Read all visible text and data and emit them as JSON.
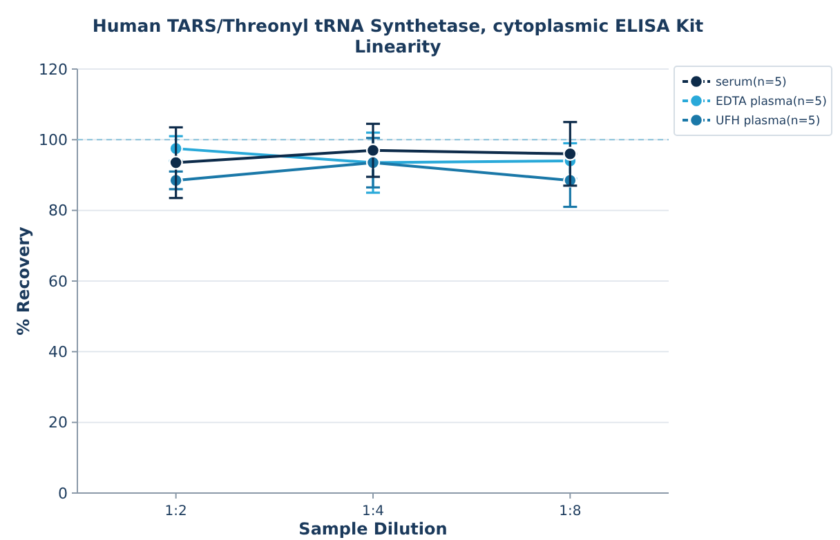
{
  "chart_data": {
    "type": "line",
    "title": "Human TARS/Threonyl tRNA Synthetase, cytoplasmic ELISA Kit",
    "subtitle": "Linearity",
    "xlabel": "Sample Dilution",
    "ylabel": "% Recovery",
    "categories": [
      "1:2",
      "1:4",
      "1:8"
    ],
    "series": [
      {
        "name": "serum(n=5)",
        "color": "#0d2b4a",
        "values": [
          93.5,
          97,
          96
        ],
        "errors": [
          10,
          7.5,
          9
        ]
      },
      {
        "name": "EDTA plasma(n=5)",
        "color": "#29a9d9",
        "values": [
          97.5,
          93.5,
          94
        ],
        "errors": [
          3.5,
          8.5,
          5
        ]
      },
      {
        "name": "UFH plasma(n=5)",
        "color": "#1a78a8",
        "values": [
          88.5,
          93.5,
          88.5
        ],
        "errors": [
          2.5,
          7,
          7.5
        ]
      }
    ],
    "ylim": [
      0,
      120
    ],
    "yticks": [
      0,
      20,
      40,
      60,
      80,
      100,
      120
    ],
    "grid": "y",
    "legend": "top right",
    "marker": "circle",
    "ref_lines": [
      {
        "axis": "y",
        "value": 100,
        "color": "#8cc4dc",
        "line_style": "dashed"
      }
    ]
  }
}
